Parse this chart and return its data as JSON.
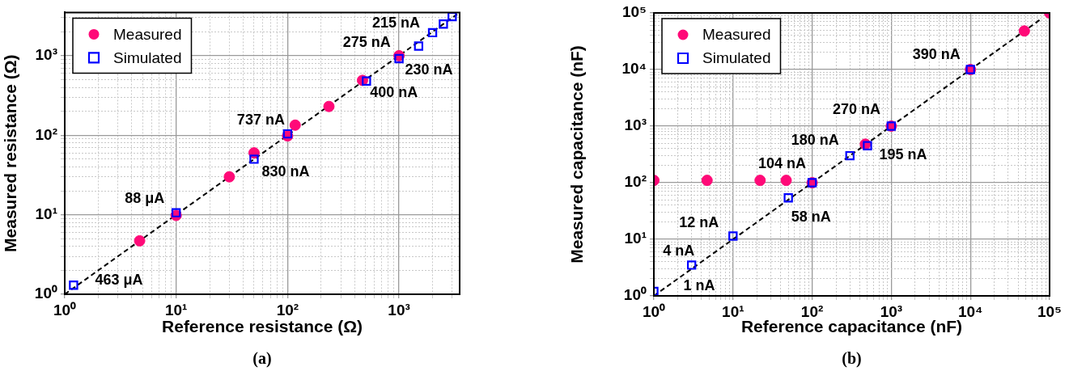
{
  "chart_data": [
    {
      "type": "scatter",
      "xlabel": "Reference resistance (Ω)",
      "ylabel": "Measured resistance (Ω)",
      "log": "xy",
      "grid": true,
      "legend": "top left",
      "xlim": [
        1,
        3500
      ],
      "ylim": [
        1,
        3500
      ],
      "xticks": [
        {
          "value": 1,
          "label": "10⁰"
        },
        {
          "value": 2,
          "label": null
        },
        {
          "value": 3,
          "label": null
        },
        {
          "value": 4,
          "label": null
        },
        {
          "value": 5,
          "label": null
        },
        {
          "value": 6,
          "label": null
        },
        {
          "value": 7,
          "label": null
        },
        {
          "value": 8,
          "label": null
        },
        {
          "value": 9,
          "label": null
        },
        {
          "value": 10,
          "label": "10¹"
        },
        {
          "value": 20,
          "label": null
        },
        {
          "value": 30,
          "label": null
        },
        {
          "value": 40,
          "label": null
        },
        {
          "value": 50,
          "label": null
        },
        {
          "value": 60,
          "label": null
        },
        {
          "value": 70,
          "label": null
        },
        {
          "value": 80,
          "label": null
        },
        {
          "value": 90,
          "label": null
        },
        {
          "value": 100,
          "label": "10²"
        },
        {
          "value": 200,
          "label": null
        },
        {
          "value": 300,
          "label": null
        },
        {
          "value": 400,
          "label": null
        },
        {
          "value": 500,
          "label": null
        },
        {
          "value": 600,
          "label": null
        },
        {
          "value": 700,
          "label": null
        },
        {
          "value": 800,
          "label": null
        },
        {
          "value": 900,
          "label": null
        },
        {
          "value": 1000,
          "label": "10³"
        },
        {
          "value": 2000,
          "label": null
        },
        {
          "value": 3000,
          "label": null
        }
      ],
      "yticks": [
        {
          "value": 1,
          "label": "10⁰"
        },
        {
          "value": 2,
          "label": null
        },
        {
          "value": 3,
          "label": null
        },
        {
          "value": 4,
          "label": null
        },
        {
          "value": 5,
          "label": null
        },
        {
          "value": 6,
          "label": null
        },
        {
          "value": 7,
          "label": null
        },
        {
          "value": 8,
          "label": null
        },
        {
          "value": 9,
          "label": null
        },
        {
          "value": 10,
          "label": "10¹"
        },
        {
          "value": 20,
          "label": null
        },
        {
          "value": 30,
          "label": null
        },
        {
          "value": 40,
          "label": null
        },
        {
          "value": 50,
          "label": null
        },
        {
          "value": 60,
          "label": null
        },
        {
          "value": 70,
          "label": null
        },
        {
          "value": 80,
          "label": null
        },
        {
          "value": 90,
          "label": null
        },
        {
          "value": 100,
          "label": "10²"
        },
        {
          "value": 200,
          "label": null
        },
        {
          "value": 300,
          "label": null
        },
        {
          "value": 400,
          "label": null
        },
        {
          "value": 500,
          "label": null
        },
        {
          "value": 600,
          "label": null
        },
        {
          "value": 700,
          "label": null
        },
        {
          "value": 800,
          "label": null
        },
        {
          "value": 900,
          "label": null
        },
        {
          "value": 1000,
          "label": "10³"
        },
        {
          "value": 2000,
          "label": null
        },
        {
          "value": 3000,
          "label": null
        }
      ],
      "series": [
        {
          "name": "Measured",
          "color": "#ff0a78",
          "marker": "circle",
          "x": [
            4.7,
            10,
            30,
            50,
            100,
            117,
            235,
            470,
            1000
          ],
          "values": [
            4.7,
            9.8,
            30,
            60,
            98,
            134,
            230,
            490,
            1000
          ]
        },
        {
          "name": "Simulated",
          "color": "#0000ff",
          "marker": "square",
          "x": [
            1.2,
            10,
            50,
            100,
            510,
            1000,
            1500,
            2000,
            2500,
            3000
          ],
          "values": [
            1.3,
            10.6,
            50,
            104,
            480,
            920,
            1320,
            1950,
            2500,
            3100
          ]
        },
        {
          "type": "line",
          "color": "#000000",
          "marker": "none",
          "line_style": "dashed",
          "x": [
            1,
            3500
          ],
          "values": [
            1,
            3500
          ]
        }
      ],
      "annotations": [
        {
          "text": "463 μA",
          "x": 1.2,
          "y": 1.3
        },
        {
          "text": "88 μA",
          "x": 10,
          "y": 10.6
        },
        {
          "text": "830 nA",
          "x": 50,
          "y": 50
        },
        {
          "text": "737 nA",
          "x": 100,
          "y": 104
        },
        {
          "text": "400 nA",
          "x": 510,
          "y": 480
        },
        {
          "text": "230 nA",
          "x": 1000,
          "y": 920
        },
        {
          "text": "275 nA",
          "x": 1500,
          "y": 1320
        },
        {
          "text": "215 nA",
          "x": 2000,
          "y": 1950
        },
        "(a)"
      ]
    },
    {
      "type": "scatter",
      "xlabel": "Reference capacitance (nF)",
      "ylabel": "Measured capacitance (nF)",
      "log": "xy",
      "grid": true,
      "legend": "top left",
      "xlim": [
        1,
        100000
      ],
      "ylim": [
        1,
        100000
      ],
      "xticks": [
        {
          "value": 1,
          "label": "10⁰"
        },
        {
          "value": 2,
          "label": null
        },
        {
          "value": 3,
          "label": null
        },
        {
          "value": 4,
          "label": null
        },
        {
          "value": 5,
          "label": null
        },
        {
          "value": 6,
          "label": null
        },
        {
          "value": 7,
          "label": null
        },
        {
          "value": 8,
          "label": null
        },
        {
          "value": 9,
          "label": null
        },
        {
          "value": 10,
          "label": "10¹"
        },
        {
          "value": 20,
          "label": null
        },
        {
          "value": 30,
          "label": null
        },
        {
          "value": 40,
          "label": null
        },
        {
          "value": 50,
          "label": null
        },
        {
          "value": 60,
          "label": null
        },
        {
          "value": 70,
          "label": null
        },
        {
          "value": 80,
          "label": null
        },
        {
          "value": 90,
          "label": null
        },
        {
          "value": 100,
          "label": "10²"
        },
        {
          "value": 200,
          "label": null
        },
        {
          "value": 300,
          "label": null
        },
        {
          "value": 400,
          "label": null
        },
        {
          "value": 500,
          "label": null
        },
        {
          "value": 600,
          "label": null
        },
        {
          "value": 700,
          "label": null
        },
        {
          "value": 800,
          "label": null
        },
        {
          "value": 900,
          "label": null
        },
        {
          "value": 1000,
          "label": "10³"
        },
        {
          "value": 2000,
          "label": null
        },
        {
          "value": 3000,
          "label": null
        },
        {
          "value": 4000,
          "label": null
        },
        {
          "value": 5000,
          "label": null
        },
        {
          "value": 6000,
          "label": null
        },
        {
          "value": 7000,
          "label": null
        },
        {
          "value": 8000,
          "label": null
        },
        {
          "value": 9000,
          "label": null
        },
        {
          "value": 10000,
          "label": "10⁴"
        },
        {
          "value": 20000,
          "label": null
        },
        {
          "value": 30000,
          "label": null
        },
        {
          "value": 40000,
          "label": null
        },
        {
          "value": 50000,
          "label": null
        },
        {
          "value": 60000,
          "label": null
        },
        {
          "value": 70000,
          "label": null
        },
        {
          "value": 80000,
          "label": null
        },
        {
          "value": 90000,
          "label": null
        },
        {
          "value": 100000,
          "label": "10⁵"
        }
      ],
      "yticks": [
        {
          "value": 1,
          "label": "10⁰"
        },
        {
          "value": 2,
          "label": null
        },
        {
          "value": 3,
          "label": null
        },
        {
          "value": 4,
          "label": null
        },
        {
          "value": 5,
          "label": null
        },
        {
          "value": 6,
          "label": null
        },
        {
          "value": 7,
          "label": null
        },
        {
          "value": 8,
          "label": null
        },
        {
          "value": 9,
          "label": null
        },
        {
          "value": 10,
          "label": "10¹"
        },
        {
          "value": 20,
          "label": null
        },
        {
          "value": 30,
          "label": null
        },
        {
          "value": 40,
          "label": null
        },
        {
          "value": 50,
          "label": null
        },
        {
          "value": 60,
          "label": null
        },
        {
          "value": 70,
          "label": null
        },
        {
          "value": 80,
          "label": null
        },
        {
          "value": 90,
          "label": null
        },
        {
          "value": 100,
          "label": "10²"
        },
        {
          "value": 200,
          "label": null
        },
        {
          "value": 300,
          "label": null
        },
        {
          "value": 400,
          "label": null
        },
        {
          "value": 500,
          "label": null
        },
        {
          "value": 600,
          "label": null
        },
        {
          "value": 700,
          "label": null
        },
        {
          "value": 800,
          "label": null
        },
        {
          "value": 900,
          "label": null
        },
        {
          "value": 1000,
          "label": "10³"
        },
        {
          "value": 2000,
          "label": null
        },
        {
          "value": 3000,
          "label": null
        },
        {
          "value": 4000,
          "label": null
        },
        {
          "value": 5000,
          "label": null
        },
        {
          "value": 6000,
          "label": null
        },
        {
          "value": 7000,
          "label": null
        },
        {
          "value": 8000,
          "label": null
        },
        {
          "value": 9000,
          "label": null
        },
        {
          "value": 10000,
          "label": "10⁴"
        },
        {
          "value": 20000,
          "label": null
        },
        {
          "value": 30000,
          "label": null
        },
        {
          "value": 40000,
          "label": null
        },
        {
          "value": 50000,
          "label": null
        },
        {
          "value": 60000,
          "label": null
        },
        {
          "value": 70000,
          "label": null
        },
        {
          "value": 80000,
          "label": null
        },
        {
          "value": 90000,
          "label": null
        },
        {
          "value": 100000,
          "label": "10⁵"
        }
      ],
      "series": [
        {
          "name": "Measured",
          "color": "#ff0a78",
          "marker": "circle",
          "x": [
            1,
            4.7,
            22,
            47,
            100,
            470,
            1000,
            10000,
            48000,
            100000
          ],
          "values": [
            110,
            110,
            110,
            110,
            100,
            480,
            1000,
            10000,
            48000,
            100000
          ]
        },
        {
          "name": "Simulated",
          "color": "#0000ff",
          "marker": "square",
          "x": [
            1,
            3,
            10,
            50,
            100,
            300,
            500,
            1000,
            10000
          ],
          "values": [
            1.2,
            3.5,
            11.4,
            54,
            100,
            300,
            450,
            1000,
            10000
          ]
        },
        {
          "type": "line",
          "color": "#000000",
          "marker": "none",
          "line_style": "dashed",
          "x": [
            1,
            80000
          ],
          "values": [
            1,
            80000
          ]
        }
      ],
      "annotations": [
        {
          "text": "390 nA",
          "x": 10000,
          "y": 10000
        },
        {
          "text": "270 nA",
          "x": 1000,
          "y": 1000
        },
        {
          "text": "180 nA",
          "x": 300,
          "y": 300
        },
        {
          "text": "195 nA",
          "x": 500,
          "y": 450
        },
        {
          "text": "104 nA",
          "x": 100,
          "y": 100
        },
        {
          "text": "58 nA",
          "x": 50,
          "y": 54
        },
        {
          "text": "12 nA",
          "x": 10,
          "y": 11.4
        },
        {
          "text": "4 nA",
          "x": 3,
          "y": 3.5
        },
        {
          "text": "1 nA",
          "x": 1,
          "y": 1.2
        },
        "(b)"
      ]
    }
  ]
}
